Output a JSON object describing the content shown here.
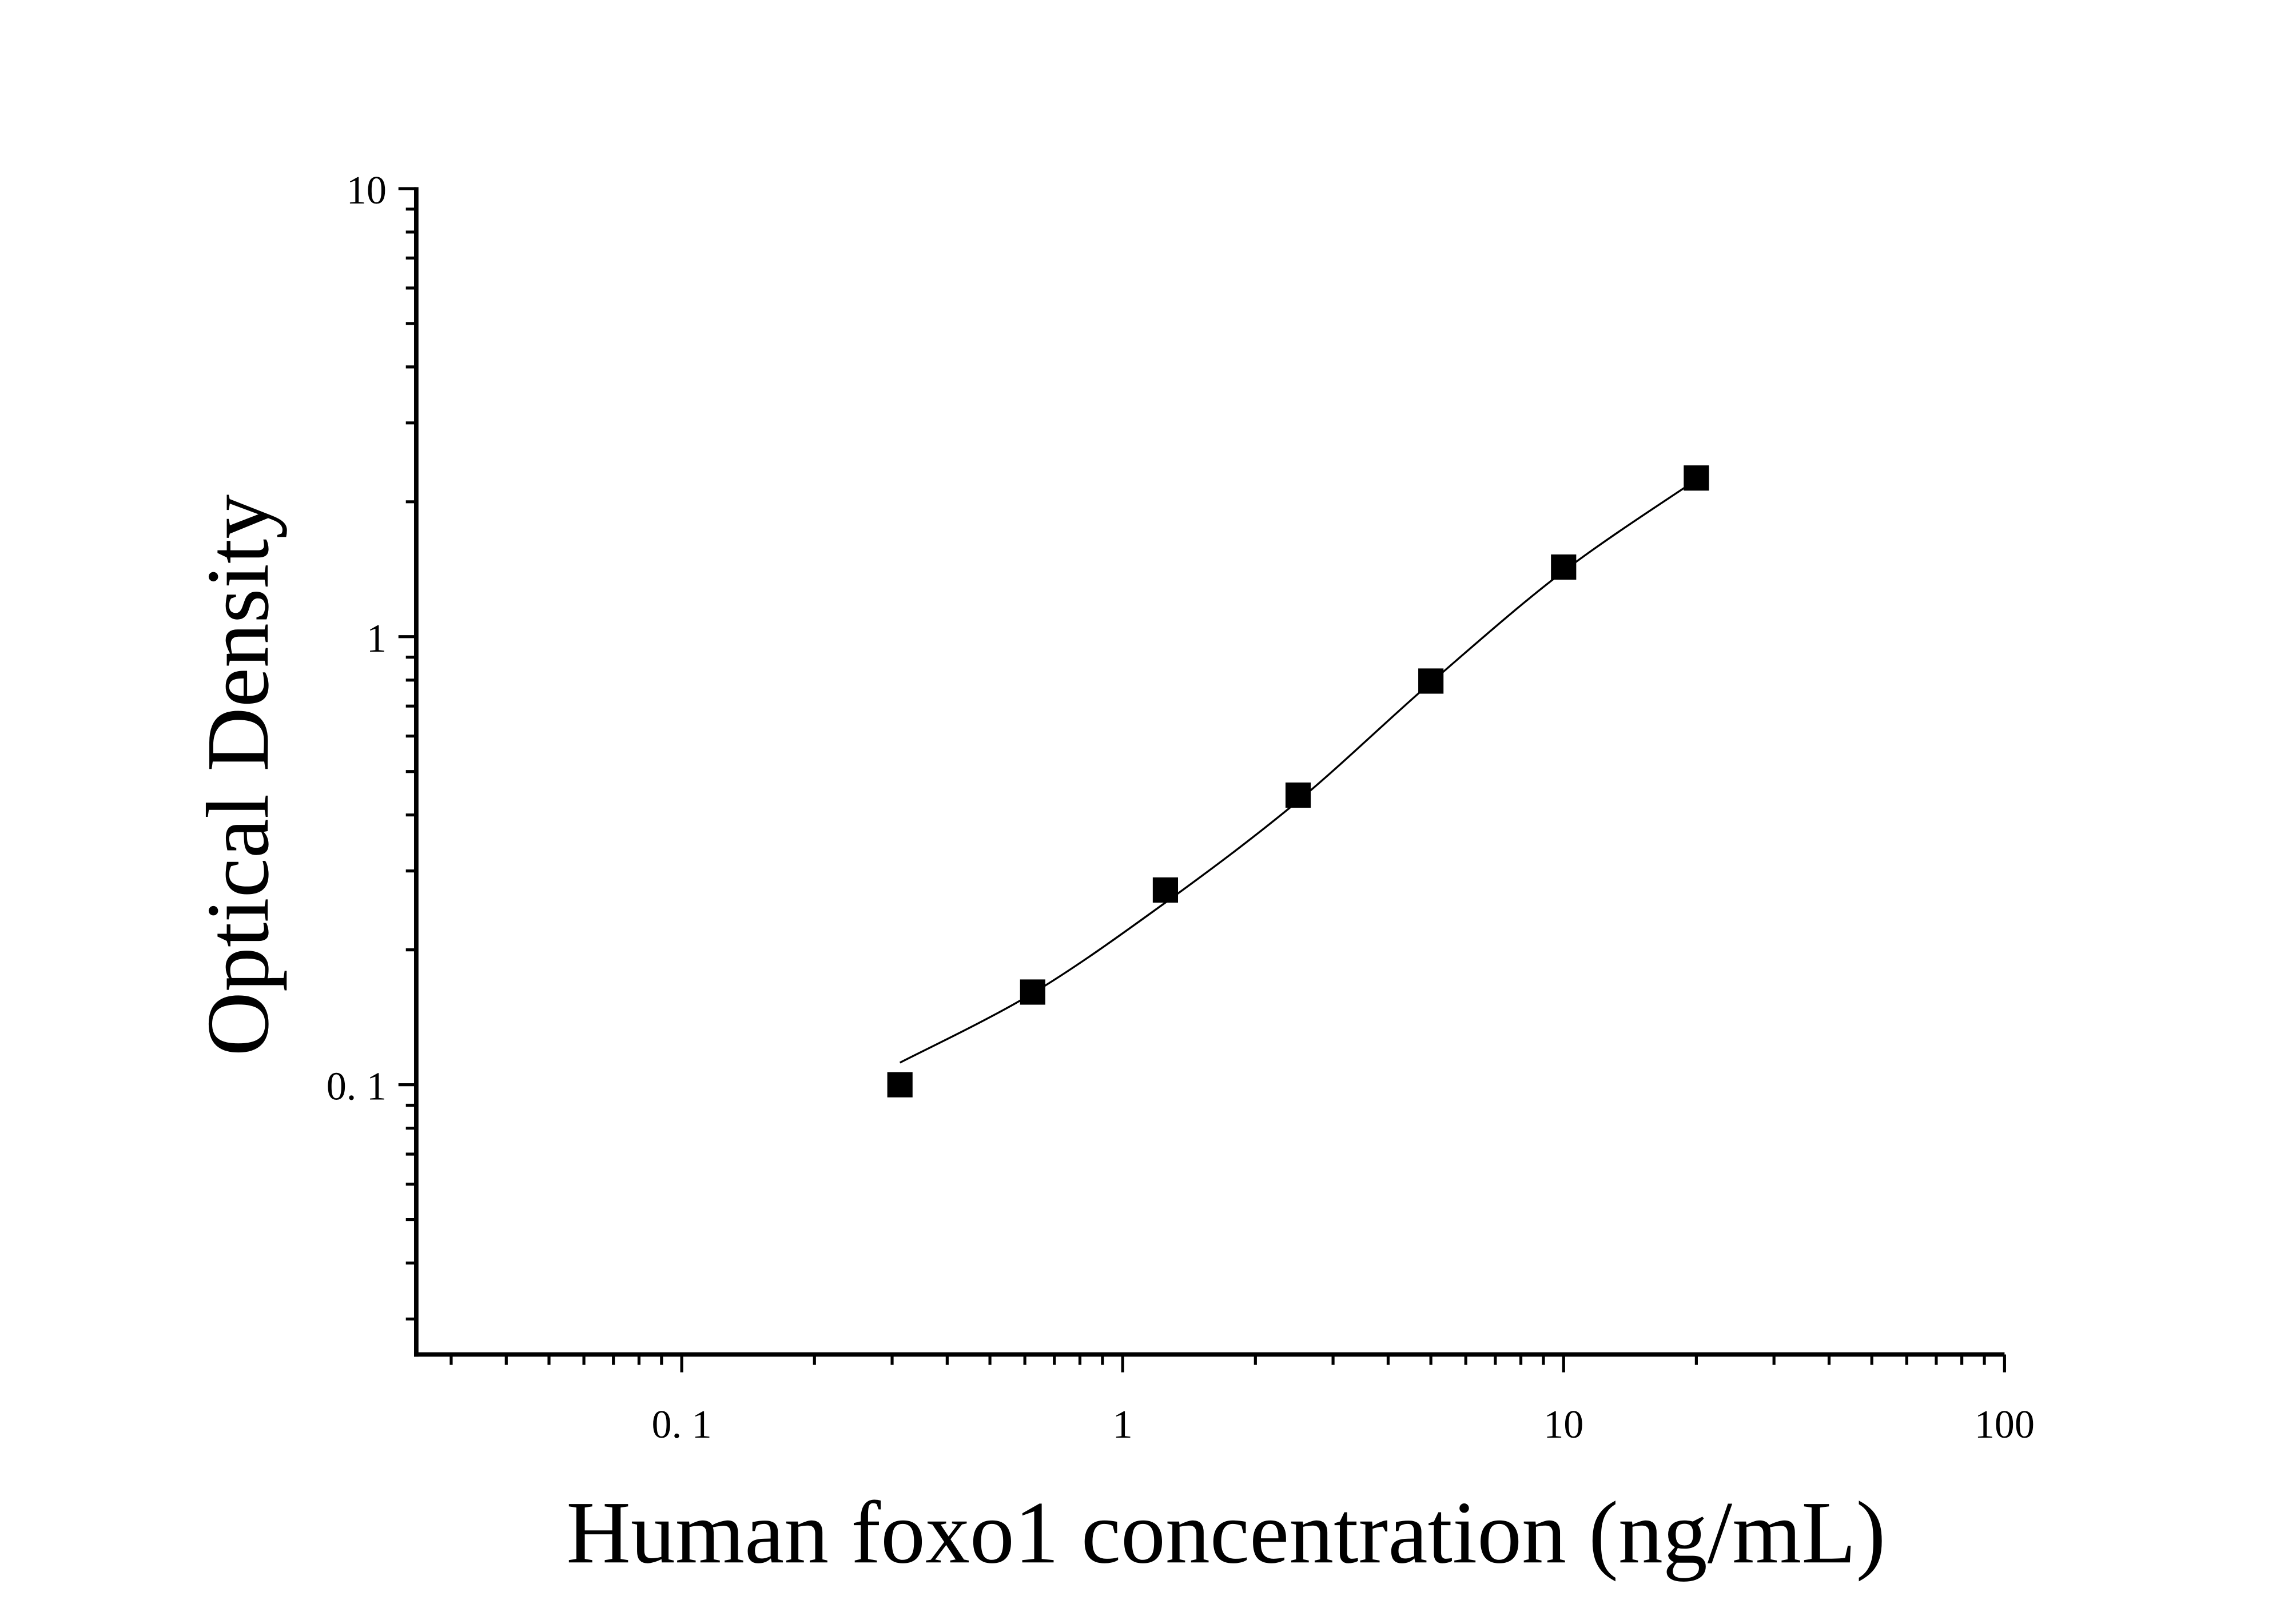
{
  "chart_data": {
    "type": "scatter",
    "title": "",
    "xlabel": "Human foxo1 concentration (ng/mL)",
    "ylabel": "Optical Density",
    "x_scale": "log",
    "y_scale": "log",
    "xlim": [
      0.025,
      100
    ],
    "ylim": [
      0.025,
      10
    ],
    "x_ticks": [
      {
        "value": 0.1,
        "label": "0. 1"
      },
      {
        "value": 1,
        "label": "1"
      },
      {
        "value": 10,
        "label": "10"
      },
      {
        "value": 100,
        "label": "100"
      }
    ],
    "y_ticks": [
      {
        "value": 0.1,
        "label": "0. 1"
      },
      {
        "value": 1,
        "label": "1"
      },
      {
        "value": 10,
        "label": "10"
      }
    ],
    "grid": false,
    "legend": "none",
    "marker": "square",
    "color": "#000000",
    "series": [
      {
        "x": [
          0.3125,
          0.625,
          1.25,
          2.5,
          5,
          10,
          20
        ],
        "y": [
          0.1,
          0.161,
          0.272,
          0.443,
          0.796,
          1.43,
          2.26
        ]
      }
    ],
    "fit_curve": {
      "x": [
        0.3125,
        0.625,
        1.25,
        2.5,
        5,
        10,
        20
      ],
      "y": [
        0.112,
        0.16,
        0.255,
        0.43,
        0.79,
        1.4,
        2.24
      ]
    }
  }
}
